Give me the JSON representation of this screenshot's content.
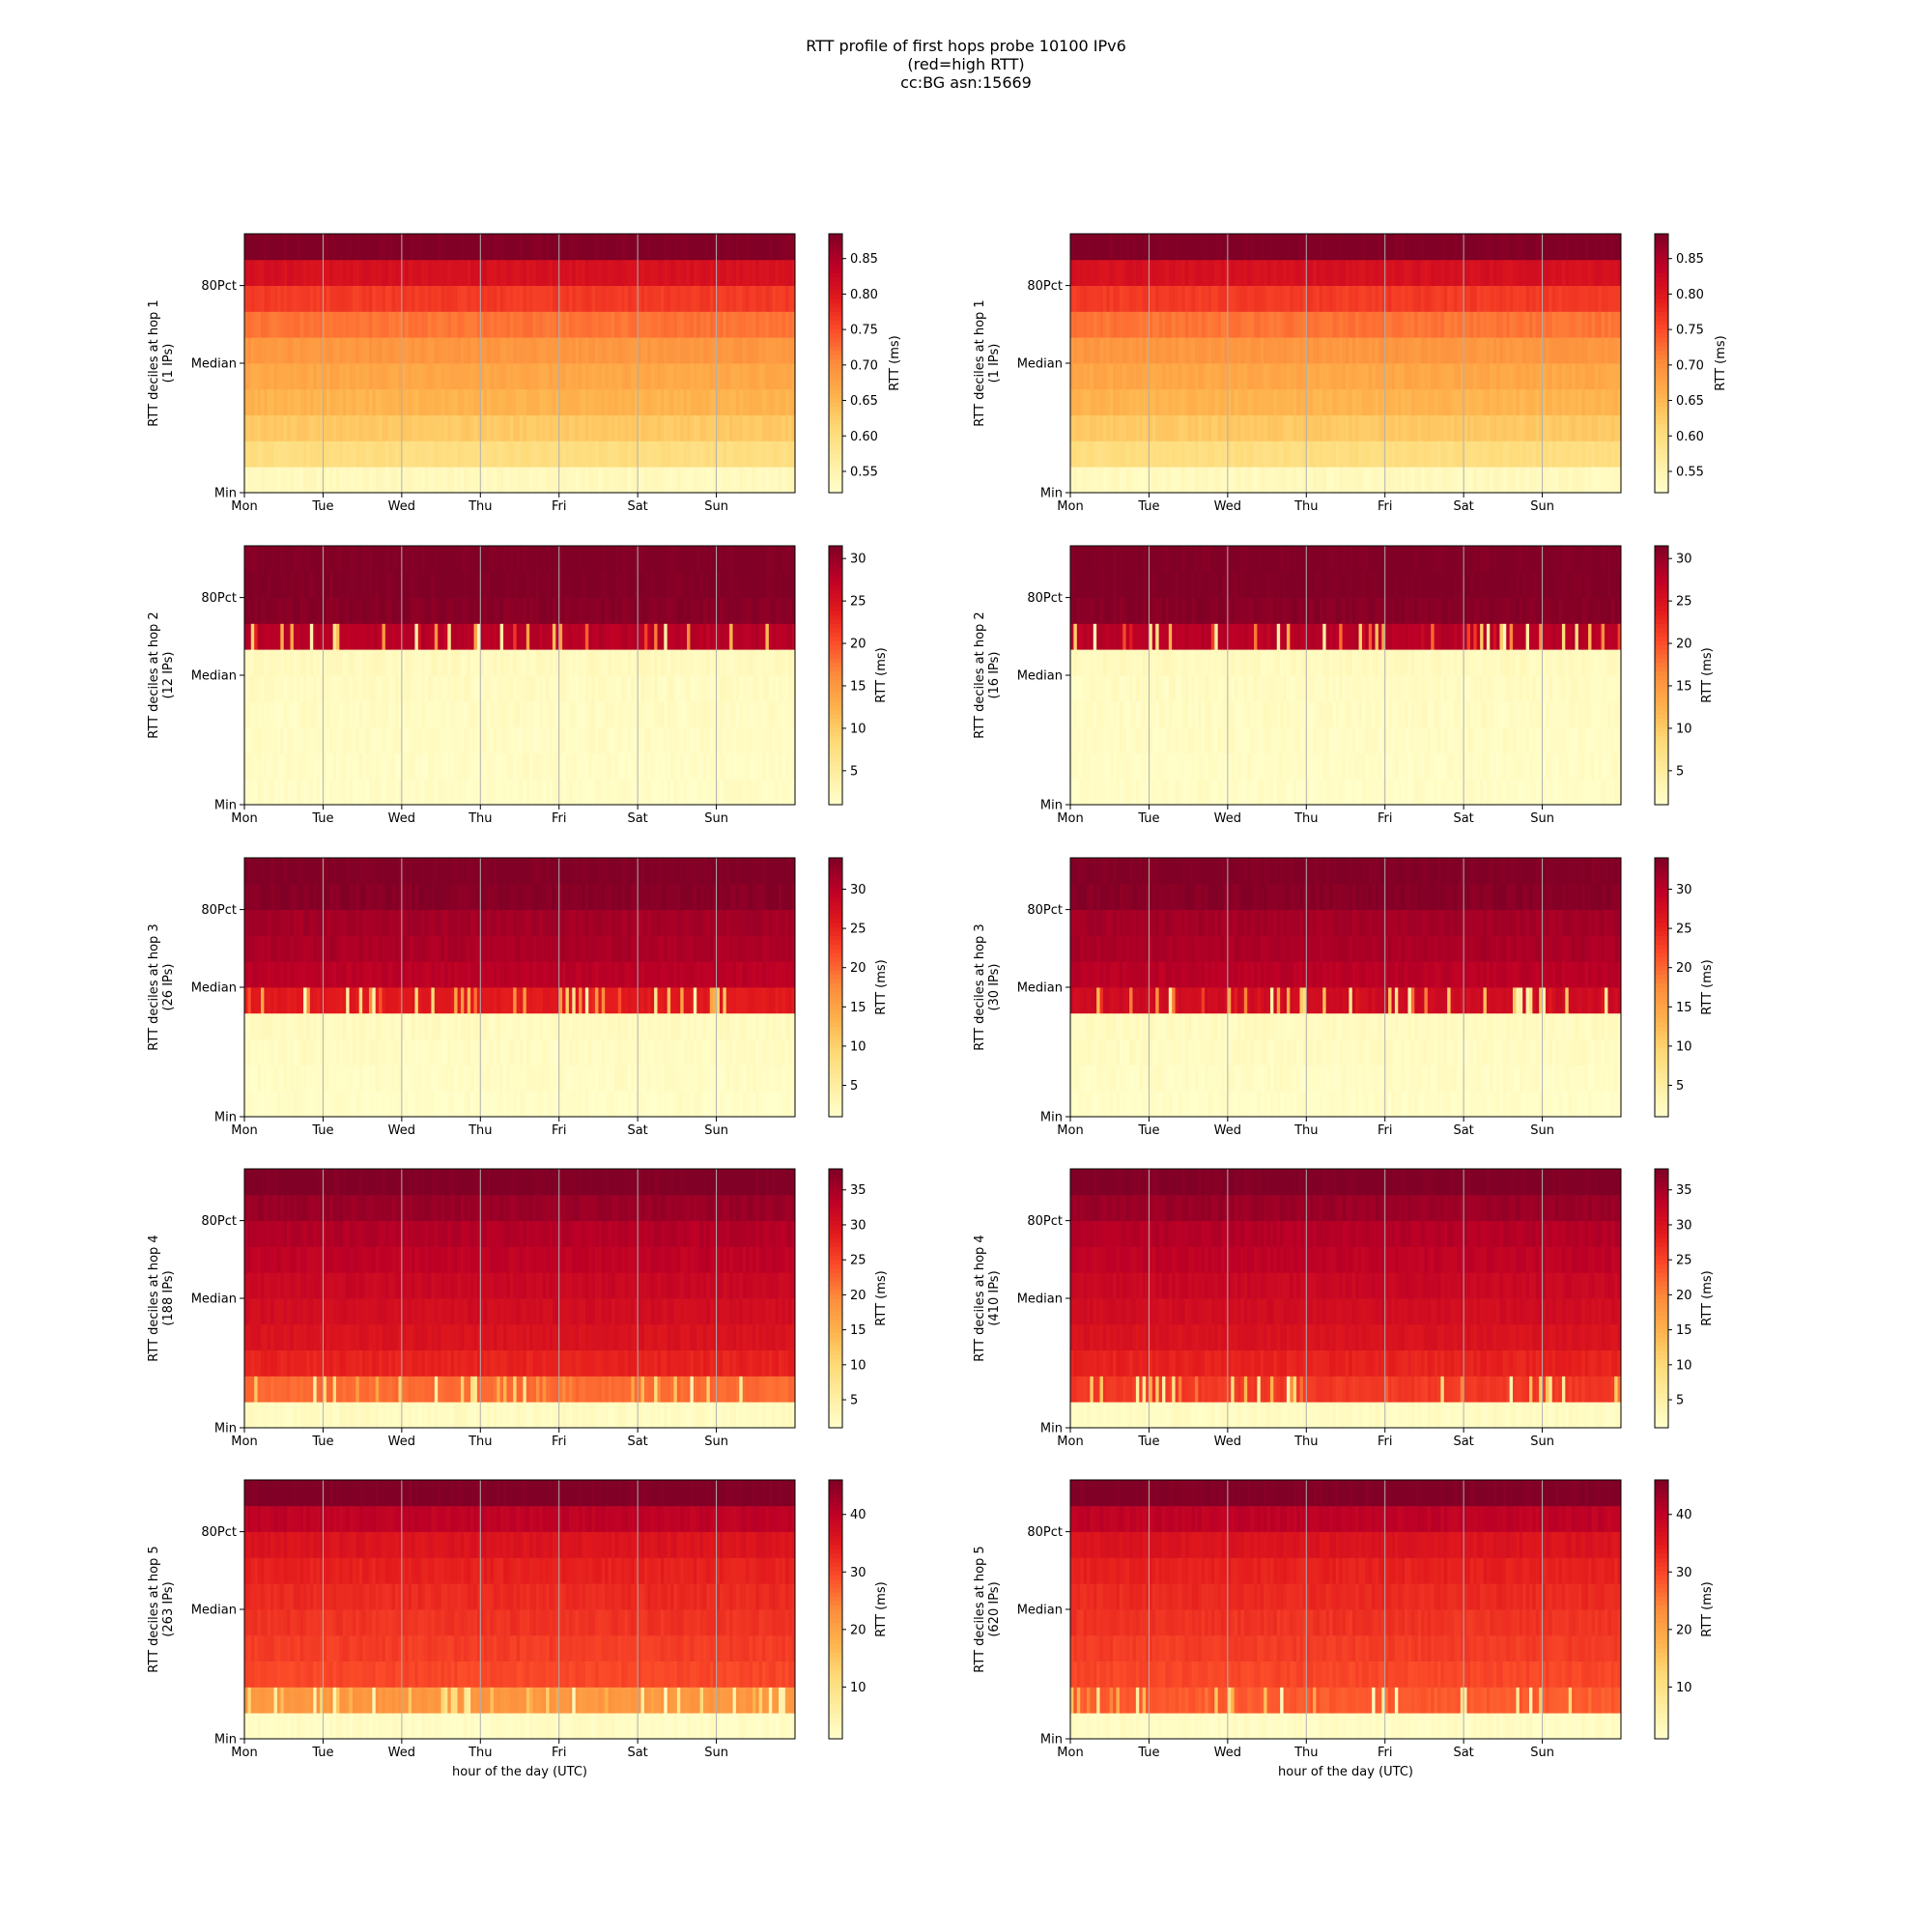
{
  "figure": {
    "title_lines": [
      "RTT profile of first hops probe 10100 IPv6",
      "(red=high RTT)",
      "cc:BG asn:15669"
    ]
  },
  "chart_data": [
    {
      "type": "heatmap",
      "ylabel": "RTT deciles at hop 1",
      "ylabel_sub": "(1 IPs)",
      "xlabel": "",
      "x_ticks": [
        "Mon",
        "Tue",
        "Wed",
        "Thu",
        "Fri",
        "Sat",
        "Sun"
      ],
      "y_ticks": [
        "Min",
        "Median",
        "80Pct"
      ],
      "colorbar": {
        "label": "RTT (ms)",
        "range": [
          0.52,
          0.885
        ],
        "ticks": [
          0.55,
          0.6,
          0.65,
          0.7,
          0.75,
          0.8,
          0.85
        ]
      },
      "colormap": "YlOrRd",
      "grid": "vertical lines at day boundaries",
      "decile_values": [
        0.535,
        0.6,
        0.63,
        0.655,
        0.67,
        0.69,
        0.72,
        0.765,
        0.81,
        0.885
      ]
    },
    {
      "type": "heatmap",
      "ylabel": "RTT deciles at hop 1",
      "ylabel_sub": "(1 IPs)",
      "xlabel": "",
      "x_ticks": [
        "Mon",
        "Tue",
        "Wed",
        "Thu",
        "Fri",
        "Sat",
        "Sun"
      ],
      "y_ticks": [
        "Min",
        "Median",
        "80Pct"
      ],
      "colorbar": {
        "label": "RTT (ms)",
        "range": [
          0.52,
          0.885
        ],
        "ticks": [
          0.55,
          0.6,
          0.65,
          0.7,
          0.75,
          0.8,
          0.85
        ]
      },
      "colormap": "YlOrRd",
      "grid": "vertical lines at day boundaries",
      "decile_values": [
        0.535,
        0.6,
        0.63,
        0.655,
        0.67,
        0.69,
        0.72,
        0.765,
        0.81,
        0.885
      ]
    },
    {
      "type": "heatmap",
      "ylabel": "RTT deciles at hop 2",
      "ylabel_sub": "(12 IPs)",
      "xlabel": "",
      "x_ticks": [
        "Mon",
        "Tue",
        "Wed",
        "Thu",
        "Fri",
        "Sat",
        "Sun"
      ],
      "y_ticks": [
        "Min",
        "Median",
        "80Pct"
      ],
      "colorbar": {
        "label": "RTT (ms)",
        "range": [
          1,
          31.5
        ],
        "ticks": [
          5,
          10,
          15,
          20,
          25,
          30
        ]
      },
      "colormap": "YlOrRd",
      "grid": "vertical lines at day boundaries",
      "decile_values": [
        1.5,
        1.6,
        1.7,
        1.8,
        1.9,
        2.2,
        28,
        31,
        31.5,
        31.5
      ]
    },
    {
      "type": "heatmap",
      "ylabel": "RTT deciles at hop 2",
      "ylabel_sub": "(16 IPs)",
      "xlabel": "",
      "x_ticks": [
        "Mon",
        "Tue",
        "Wed",
        "Thu",
        "Fri",
        "Sat",
        "Sun"
      ],
      "y_ticks": [
        "Min",
        "Median",
        "80Pct"
      ],
      "colorbar": {
        "label": "RTT (ms)",
        "range": [
          1,
          31.5
        ],
        "ticks": [
          5,
          10,
          15,
          20,
          25,
          30
        ]
      },
      "colormap": "YlOrRd",
      "grid": "vertical lines at day boundaries",
      "decile_values": [
        1.5,
        1.6,
        1.7,
        1.8,
        1.9,
        2.2,
        28,
        31,
        31.5,
        31.5
      ]
    },
    {
      "type": "heatmap",
      "ylabel": "RTT deciles at hop 3",
      "ylabel_sub": "(26 IPs)",
      "xlabel": "",
      "x_ticks": [
        "Mon",
        "Tue",
        "Wed",
        "Thu",
        "Fri",
        "Sat",
        "Sun"
      ],
      "y_ticks": [
        "Min",
        "Median",
        "80Pct"
      ],
      "colorbar": {
        "label": "RTT (ms)",
        "range": [
          1,
          34
        ],
        "ticks": [
          5,
          10,
          15,
          20,
          25,
          30
        ]
      },
      "colormap": "YlOrRd",
      "grid": "vertical lines at day boundaries",
      "decile_values": [
        1.5,
        1.7,
        1.9,
        2.1,
        26,
        30,
        31,
        31.5,
        33.5,
        34
      ]
    },
    {
      "type": "heatmap",
      "ylabel": "RTT deciles at hop 3",
      "ylabel_sub": "(30 IPs)",
      "xlabel": "",
      "x_ticks": [
        "Mon",
        "Tue",
        "Wed",
        "Thu",
        "Fri",
        "Sat",
        "Sun"
      ],
      "y_ticks": [
        "Min",
        "Median",
        "80Pct"
      ],
      "colorbar": {
        "label": "RTT (ms)",
        "range": [
          1,
          34
        ],
        "ticks": [
          5,
          10,
          15,
          20,
          25,
          30
        ]
      },
      "colormap": "YlOrRd",
      "grid": "vertical lines at day boundaries",
      "decile_values": [
        1.5,
        1.7,
        1.9,
        2.1,
        28,
        30,
        31,
        31.5,
        33.5,
        34
      ]
    },
    {
      "type": "heatmap",
      "ylabel": "RTT deciles at hop 4",
      "ylabel_sub": "(188 IPs)",
      "xlabel": "",
      "x_ticks": [
        "Mon",
        "Tue",
        "Wed",
        "Thu",
        "Fri",
        "Sat",
        "Sun"
      ],
      "y_ticks": [
        "Min",
        "Median",
        "80Pct"
      ],
      "colorbar": {
        "label": "RTT (ms)",
        "range": [
          1,
          38
        ],
        "ticks": [
          5,
          10,
          15,
          20,
          25,
          30,
          35
        ]
      },
      "colormap": "YlOrRd",
      "grid": "vertical lines at day boundaries",
      "decile_values": [
        2,
        22,
        28,
        30,
        31,
        32,
        33,
        34,
        36,
        38
      ]
    },
    {
      "type": "heatmap",
      "ylabel": "RTT deciles at hop 4",
      "ylabel_sub": "(410 IPs)",
      "xlabel": "",
      "x_ticks": [
        "Mon",
        "Tue",
        "Wed",
        "Thu",
        "Fri",
        "Sat",
        "Sun"
      ],
      "y_ticks": [
        "Min",
        "Median",
        "80Pct"
      ],
      "colorbar": {
        "label": "RTT (ms)",
        "range": [
          1,
          38
        ],
        "ticks": [
          5,
          10,
          15,
          20,
          25,
          30,
          35
        ]
      },
      "colormap": "YlOrRd",
      "grid": "vertical lines at day boundaries",
      "decile_values": [
        2,
        26,
        28,
        30,
        31,
        32,
        33,
        34,
        36,
        38
      ]
    },
    {
      "type": "heatmap",
      "ylabel": "RTT deciles at hop 5",
      "ylabel_sub": "(263 IPs)",
      "xlabel": "hour of the day (UTC)",
      "x_ticks": [
        "Mon",
        "Tue",
        "Wed",
        "Thu",
        "Fri",
        "Sat",
        "Sun"
      ],
      "y_ticks": [
        "Min",
        "Median",
        "80Pct"
      ],
      "colorbar": {
        "label": "RTT (ms)",
        "range": [
          1,
          46
        ],
        "ticks": [
          10,
          20,
          30,
          40
        ]
      },
      "colormap": "YlOrRd",
      "grid": "vertical lines at day boundaries",
      "decile_values": [
        2,
        22,
        30,
        31,
        32,
        33,
        34,
        36,
        40,
        46
      ]
    },
    {
      "type": "heatmap",
      "ylabel": "RTT deciles at hop 5",
      "ylabel_sub": "(620 IPs)",
      "xlabel": "hour of the day (UTC)",
      "x_ticks": [
        "Mon",
        "Tue",
        "Wed",
        "Thu",
        "Fri",
        "Sat",
        "Sun"
      ],
      "y_ticks": [
        "Min",
        "Median",
        "80Pct"
      ],
      "colorbar": {
        "label": "RTT (ms)",
        "range": [
          1,
          46
        ],
        "ticks": [
          10,
          20,
          30,
          40
        ]
      },
      "colormap": "YlOrRd",
      "grid": "vertical lines at day boundaries",
      "decile_values": [
        2,
        28,
        30,
        31,
        32,
        33,
        34,
        36,
        40,
        46
      ]
    }
  ]
}
